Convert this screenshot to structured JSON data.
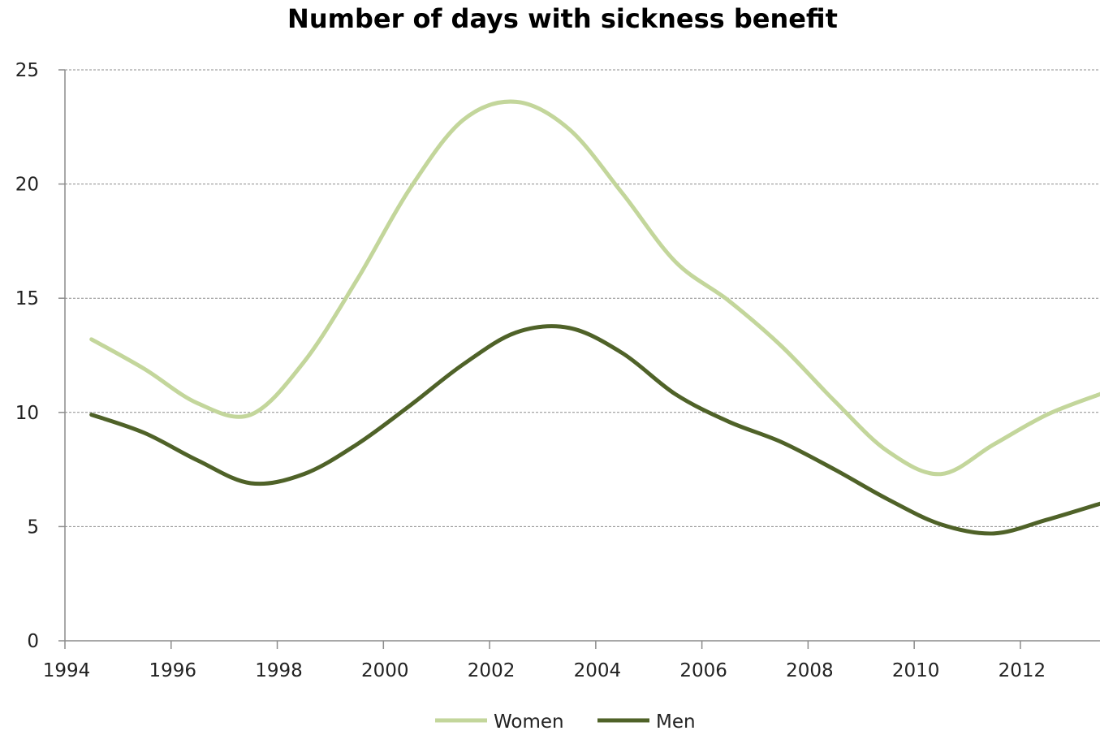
{
  "chart_data": {
    "type": "line",
    "title": "Number of days with sickness benefit",
    "xlabel": "",
    "ylabel": "",
    "xlim": [
      1994,
      2013.5
    ],
    "ylim": [
      0,
      25
    ],
    "x_ticks": [
      "1994",
      "1996",
      "1998",
      "2000",
      "2002",
      "2004",
      "2006",
      "2008",
      "2010",
      "2012"
    ],
    "y_ticks": [
      "0",
      "5",
      "10",
      "15",
      "20",
      "25"
    ],
    "grid": "horizontal, dashed",
    "legend": "bottom",
    "x": [
      1994.5,
      1995.5,
      1996.5,
      1997.5,
      1998.5,
      1999.5,
      2000.5,
      2001.5,
      2002.5,
      2003.5,
      2004.5,
      2005.5,
      2006.5,
      2007.5,
      2008.5,
      2009.5,
      2010.5,
      2011.5,
      2012.5,
      2013.5
    ],
    "series": [
      {
        "name": "Women",
        "color": "#c3d69b",
        "values": [
          13.2,
          11.9,
          10.4,
          9.9,
          12.2,
          15.8,
          19.8,
          22.8,
          23.6,
          22.4,
          19.6,
          16.6,
          14.9,
          12.9,
          10.5,
          8.3,
          7.3,
          8.6,
          9.9,
          10.8
        ]
      },
      {
        "name": "Men",
        "color": "#4f6228",
        "values": [
          9.9,
          9.1,
          7.9,
          6.9,
          7.3,
          8.6,
          10.3,
          12.1,
          13.5,
          13.7,
          12.6,
          10.8,
          9.6,
          8.7,
          7.5,
          6.2,
          5.1,
          4.7,
          5.3,
          6.0
        ]
      }
    ]
  }
}
